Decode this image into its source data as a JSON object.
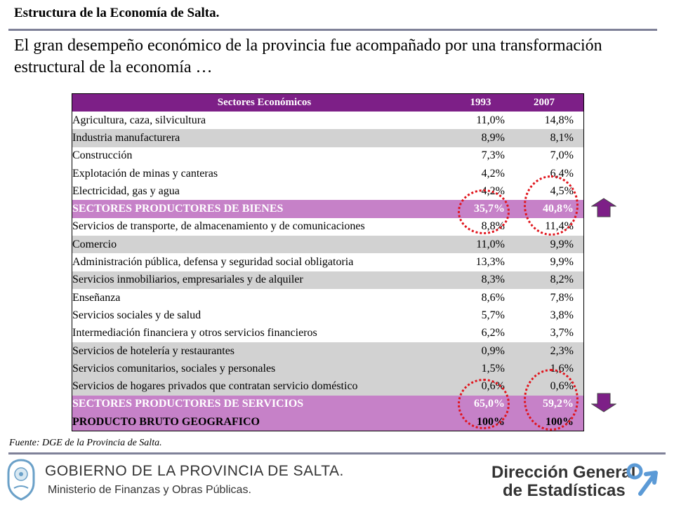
{
  "header": {
    "title": "Estructura de la Economía de Salta.",
    "subtitle": "El gran desempeño económico de la provincia fue acompañado por una transformación estructural de la economía …"
  },
  "table": {
    "columns": [
      "Sectores Económicos",
      "1993",
      "2007"
    ],
    "rows": [
      {
        "name": "Agricultura, caza, silvicultura",
        "v1993": "11,0%",
        "v2007": "14,8%"
      },
      {
        "name": "Industria manufacturera",
        "v1993": "8,9%",
        "v2007": "8,1%"
      },
      {
        "name": "Construcción",
        "v1993": "7,3%",
        "v2007": "7,0%"
      },
      {
        "name": "Explotación de minas y canteras",
        "v1993": "4,2%",
        "v2007": "6,4%"
      },
      {
        "name": "Electricidad, gas y agua",
        "v1993": "4,2%",
        "v2007": "4,5%"
      },
      {
        "name": "SECTORES PRODUCTORES DE BIENES",
        "v1993": "35,7%",
        "v2007": "40,8%"
      },
      {
        "name": "Servicios de transporte, de almacenamiento y de comunicaciones",
        "v1993": "8,8%",
        "v2007": "11,4%"
      },
      {
        "name": "Comercio",
        "v1993": "11,0%",
        "v2007": "9,9%"
      },
      {
        "name": "Administración pública, defensa y seguridad social obligatoria",
        "v1993": "13,3%",
        "v2007": "9,9%"
      },
      {
        "name": "Servicios inmobiliarios, empresariales y de alquiler",
        "v1993": "8,3%",
        "v2007": "8,2%"
      },
      {
        "name": "Enseñanza",
        "v1993": "8,6%",
        "v2007": "7,8%"
      },
      {
        "name": "Servicios sociales y de salud",
        "v1993": "5,7%",
        "v2007": "3,8%"
      },
      {
        "name": "Intermediación financiera y otros servicios financieros",
        "v1993": "6,2%",
        "v2007": "3,7%"
      },
      {
        "name": "Servicios de hotelería y restaurantes",
        "v1993": "0,9%",
        "v2007": "2,3%"
      },
      {
        "name": "Servicios comunitarios, sociales y personales",
        "v1993": "1,5%",
        "v2007": "1,6%"
      },
      {
        "name": "Servicios de hogares privados que contratan servicio doméstico",
        "v1993": "0,6%",
        "v2007": "0,6%"
      },
      {
        "name": "SECTORES PRODUCTORES DE SERVICIOS",
        "v1993": "65,0%",
        "v2007": "59,2%"
      },
      {
        "name": "PRODUCTO BRUTO GEOGRAFICO",
        "v1993": "100%",
        "v2007": "100%"
      }
    ]
  },
  "colors": {
    "header_bg": "#7d1f87",
    "highlight_bg": "#c681c8",
    "gray_row": "#d2d2d2",
    "circle": "#e0141c",
    "arrow": "#7d1f87"
  },
  "footnote": "Fuente: DGE de la Provincia de Salta.",
  "footer": {
    "gov_line1": "GOBIERNO DE LA PROVINCIA DE SALTA.",
    "gov_line2": "Ministerio de Finanzas y Obras Públicas.",
    "dge_line1": "Dirección General",
    "dge_line2": "de Estadísticas"
  },
  "icons": {
    "up": "arrow-up-icon",
    "down": "arrow-down-icon",
    "seal": "provincial-seal-icon",
    "dge": "dge-logo-icon"
  }
}
